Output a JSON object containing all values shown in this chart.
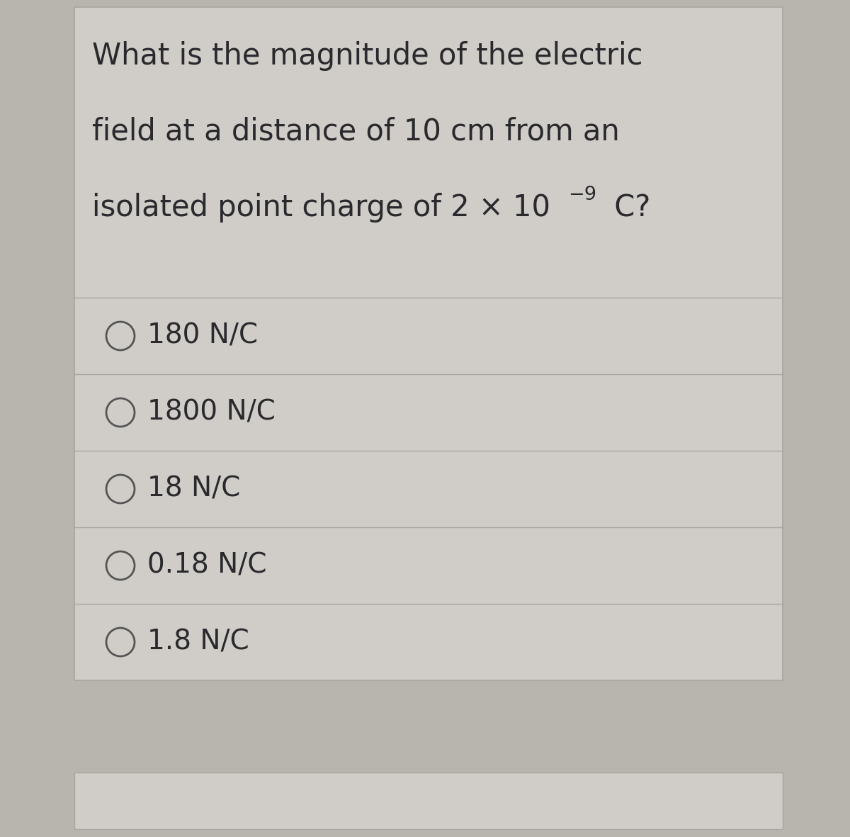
{
  "question_line1": "What is the magnitude of the electric",
  "question_line2": "field at a distance of 10 cm from an",
  "question_line3": "isolated point charge of 2 × 10",
  "question_superscript": "−9",
  "question_end": " C?",
  "options": [
    "180 N/C",
    "1800 N/C",
    "18 N/C",
    "0.18 N/C",
    "1.8 N/C"
  ],
  "bg_color": "#b8b4ae",
  "card_color": "#d0cdc8",
  "text_color": "#2a2a2e",
  "circle_color": "#555555",
  "divider_color": "#a8a5a0",
  "question_fontsize": 30,
  "option_fontsize": 28,
  "fig_width": 12.0,
  "fig_height": 11.81
}
